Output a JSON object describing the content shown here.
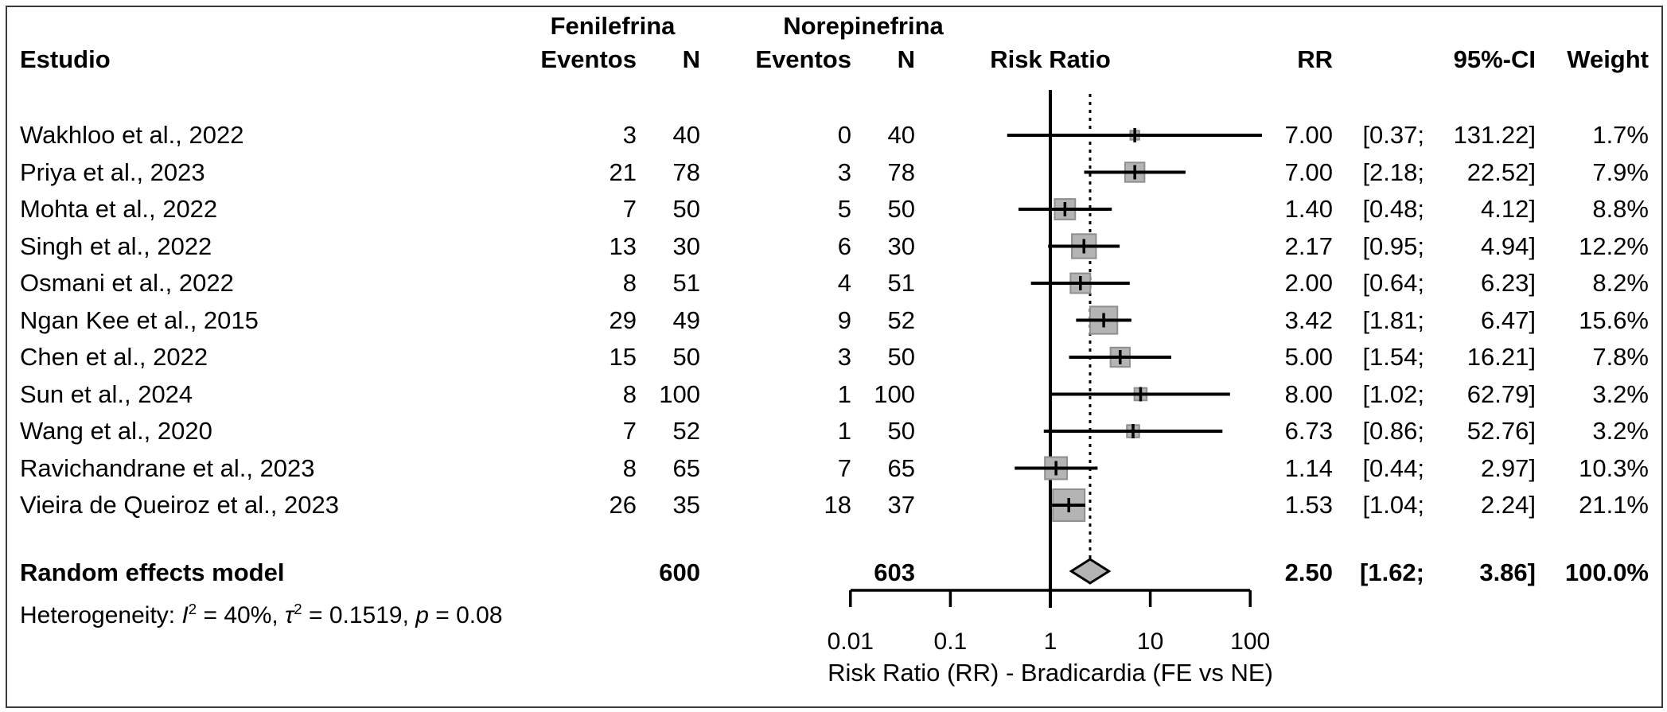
{
  "header": {
    "study_col": "Estudio",
    "group1": "Fenilefrina",
    "group2": "Norepinefrina",
    "events_col": "Eventos",
    "n_col": "N",
    "plot_col": "Risk Ratio",
    "rr_col": "RR",
    "ci_col": "95%-CI",
    "weight_col": "Weight"
  },
  "chart_data": {
    "type": "forest",
    "title": "",
    "effect_measure": "Risk Ratio",
    "studies": [
      {
        "name": "Wakhloo et al., 2022",
        "fe_events": "3",
        "fe_n": "40",
        "ne_events": "0",
        "ne_n": "40",
        "rr": 7.0,
        "ci_low": 0.37,
        "ci_high": 131.22,
        "rr_label": "7.00",
        "ci_low_label": "[0.37;",
        "ci_high_label": "131.22]",
        "weight_label": "1.7%",
        "weight_pct": 1.7
      },
      {
        "name": "Priya et al., 2023",
        "fe_events": "21",
        "fe_n": "78",
        "ne_events": "3",
        "ne_n": "78",
        "rr": 7.0,
        "ci_low": 2.18,
        "ci_high": 22.52,
        "rr_label": "7.00",
        "ci_low_label": "[2.18;",
        "ci_high_label": "22.52]",
        "weight_label": "7.9%",
        "weight_pct": 7.9
      },
      {
        "name": "Mohta et al., 2022",
        "fe_events": "7",
        "fe_n": "50",
        "ne_events": "5",
        "ne_n": "50",
        "rr": 1.4,
        "ci_low": 0.48,
        "ci_high": 4.12,
        "rr_label": "1.40",
        "ci_low_label": "[0.48;",
        "ci_high_label": "4.12]",
        "weight_label": "8.8%",
        "weight_pct": 8.8
      },
      {
        "name": "Singh et al., 2022",
        "fe_events": "13",
        "fe_n": "30",
        "ne_events": "6",
        "ne_n": "30",
        "rr": 2.17,
        "ci_low": 0.95,
        "ci_high": 4.94,
        "rr_label": "2.17",
        "ci_low_label": "[0.95;",
        "ci_high_label": "4.94]",
        "weight_label": "12.2%",
        "weight_pct": 12.2
      },
      {
        "name": "Osmani et al., 2022",
        "fe_events": "8",
        "fe_n": "51",
        "ne_events": "4",
        "ne_n": "51",
        "rr": 2.0,
        "ci_low": 0.64,
        "ci_high": 6.23,
        "rr_label": "2.00",
        "ci_low_label": "[0.64;",
        "ci_high_label": "6.23]",
        "weight_label": "8.2%",
        "weight_pct": 8.2
      },
      {
        "name": "Ngan Kee et al., 2015",
        "fe_events": "29",
        "fe_n": "49",
        "ne_events": "9",
        "ne_n": "52",
        "rr": 3.42,
        "ci_low": 1.81,
        "ci_high": 6.47,
        "rr_label": "3.42",
        "ci_low_label": "[1.81;",
        "ci_high_label": "6.47]",
        "weight_label": "15.6%",
        "weight_pct": 15.6
      },
      {
        "name": "Chen et al., 2022",
        "fe_events": "15",
        "fe_n": "50",
        "ne_events": "3",
        "ne_n": "50",
        "rr": 5.0,
        "ci_low": 1.54,
        "ci_high": 16.21,
        "rr_label": "5.00",
        "ci_low_label": "[1.54;",
        "ci_high_label": "16.21]",
        "weight_label": "7.8%",
        "weight_pct": 7.8
      },
      {
        "name": "Sun et al., 2024",
        "fe_events": "8",
        "fe_n": "100",
        "ne_events": "1",
        "ne_n": "100",
        "rr": 8.0,
        "ci_low": 1.02,
        "ci_high": 62.79,
        "rr_label": "8.00",
        "ci_low_label": "[1.02;",
        "ci_high_label": "62.79]",
        "weight_label": "3.2%",
        "weight_pct": 3.2
      },
      {
        "name": "Wang et al., 2020",
        "fe_events": "7",
        "fe_n": "52",
        "ne_events": "1",
        "ne_n": "50",
        "rr": 6.73,
        "ci_low": 0.86,
        "ci_high": 52.76,
        "rr_label": "6.73",
        "ci_low_label": "[0.86;",
        "ci_high_label": "52.76]",
        "weight_label": "3.2%",
        "weight_pct": 3.2
      },
      {
        "name": "Ravichandrane et al., 2023",
        "fe_events": "8",
        "fe_n": "65",
        "ne_events": "7",
        "ne_n": "65",
        "rr": 1.14,
        "ci_low": 0.44,
        "ci_high": 2.97,
        "rr_label": "1.14",
        "ci_low_label": "[0.44;",
        "ci_high_label": "2.97]",
        "weight_label": "10.3%",
        "weight_pct": 10.3
      },
      {
        "name": "Vieira de Queiroz et al., 2023",
        "fe_events": "26",
        "fe_n": "35",
        "ne_events": "18",
        "ne_n": "37",
        "rr": 1.53,
        "ci_low": 1.04,
        "ci_high": 2.24,
        "rr_label": "1.53",
        "ci_low_label": "[1.04;",
        "ci_high_label": "2.24]",
        "weight_label": "21.1%",
        "weight_pct": 21.1
      }
    ],
    "summary": {
      "label": "Random effects model",
      "fe_n_total": "600",
      "ne_n_total": "603",
      "rr": 2.5,
      "ci_low": 1.62,
      "ci_high": 3.86,
      "rr_label": "2.50",
      "ci_low_label": "[1.62;",
      "ci_high_label": "3.86]",
      "weight_label": "100.0%"
    },
    "heterogeneity": {
      "prefix": "Heterogeneity: ",
      "i_symbol": "I",
      "i_sup": "2",
      "i_rest": " = 40%, ",
      "tau_symbol": "τ",
      "tau_sup": "2",
      "tau_rest": " = 0.1519, ",
      "p_symbol": "p",
      "p_rest": " = 0.08"
    },
    "axis": {
      "scale": "log",
      "min": 0.01,
      "max": 100,
      "ticks": [
        0.01,
        0.1,
        1,
        10,
        100
      ],
      "tick_labels": [
        "0.01",
        "0.1",
        "1",
        "10",
        "100"
      ],
      "ref_line": 1,
      "pooled_dotted_line": 2.5,
      "xlabel": "Risk Ratio (RR) - Bradicardia (FE vs NE)"
    },
    "colors": {
      "square_fill": "#b4b4b4",
      "square_stroke": "#8f8f8f",
      "diamond_fill": "#b4b4b4",
      "diamond_stroke": "#000000",
      "line": "#000000"
    },
    "legend_position": "none",
    "grid": false
  }
}
